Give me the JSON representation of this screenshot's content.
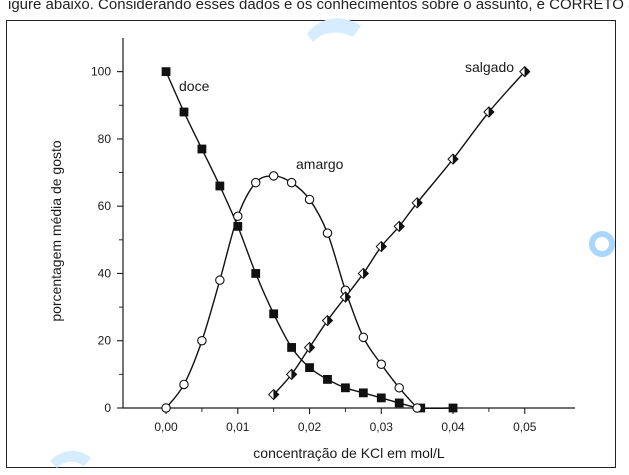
{
  "page": {
    "top_text": "igure abaixo. Considerando esses dados e os conhecimentos sobre o assunto, é CORRETO afirmar que"
  },
  "chart_data": {
    "type": "line",
    "title": "",
    "xlabel": "concentração de KCl em mol/L",
    "ylabel": "porcentagem média de gosto",
    "xlim": [
      -0.006,
      0.057
    ],
    "ylim": [
      0,
      110
    ],
    "x_ticks": [
      0.0,
      0.01,
      0.02,
      0.03,
      0.04,
      0.05
    ],
    "x_tick_labels": [
      "0,00",
      "0,01",
      "0,02",
      "0,03",
      "0,04",
      "0,05"
    ],
    "y_ticks": [
      0,
      20,
      40,
      60,
      80,
      100
    ],
    "y_tick_labels": [
      "0",
      "20",
      "40",
      "60",
      "80",
      "100"
    ],
    "grid": false,
    "series": [
      {
        "name": "doce",
        "marker": "filled-square",
        "x": [
          0.0,
          0.0025,
          0.005,
          0.0075,
          0.01,
          0.0125,
          0.015,
          0.0175,
          0.02,
          0.0225,
          0.025,
          0.0275,
          0.03,
          0.0325,
          0.0355,
          0.04
        ],
        "y": [
          100,
          88,
          77,
          66,
          54,
          40,
          28,
          18,
          12,
          8.5,
          6,
          4.5,
          3,
          1.5,
          0,
          0
        ]
      },
      {
        "name": "amargo",
        "marker": "open-circle",
        "x": [
          0.0,
          0.0025,
          0.005,
          0.0075,
          0.01,
          0.0125,
          0.015,
          0.0175,
          0.02,
          0.0225,
          0.025,
          0.0275,
          0.03,
          0.0325,
          0.035
        ],
        "y": [
          0,
          7,
          20,
          38,
          57,
          67,
          69,
          67,
          62,
          52,
          35,
          21,
          13,
          6,
          0
        ]
      },
      {
        "name": "salgado",
        "marker": "half-diamond",
        "x": [
          0.015,
          0.0175,
          0.02,
          0.0225,
          0.025,
          0.0275,
          0.03,
          0.0325,
          0.035,
          0.04,
          0.045,
          0.05
        ],
        "y": [
          4,
          10,
          18,
          26,
          33,
          40,
          48,
          54,
          61,
          74,
          88,
          100
        ]
      }
    ],
    "annotations": [
      "doce",
      "amargo",
      "salgado"
    ]
  }
}
